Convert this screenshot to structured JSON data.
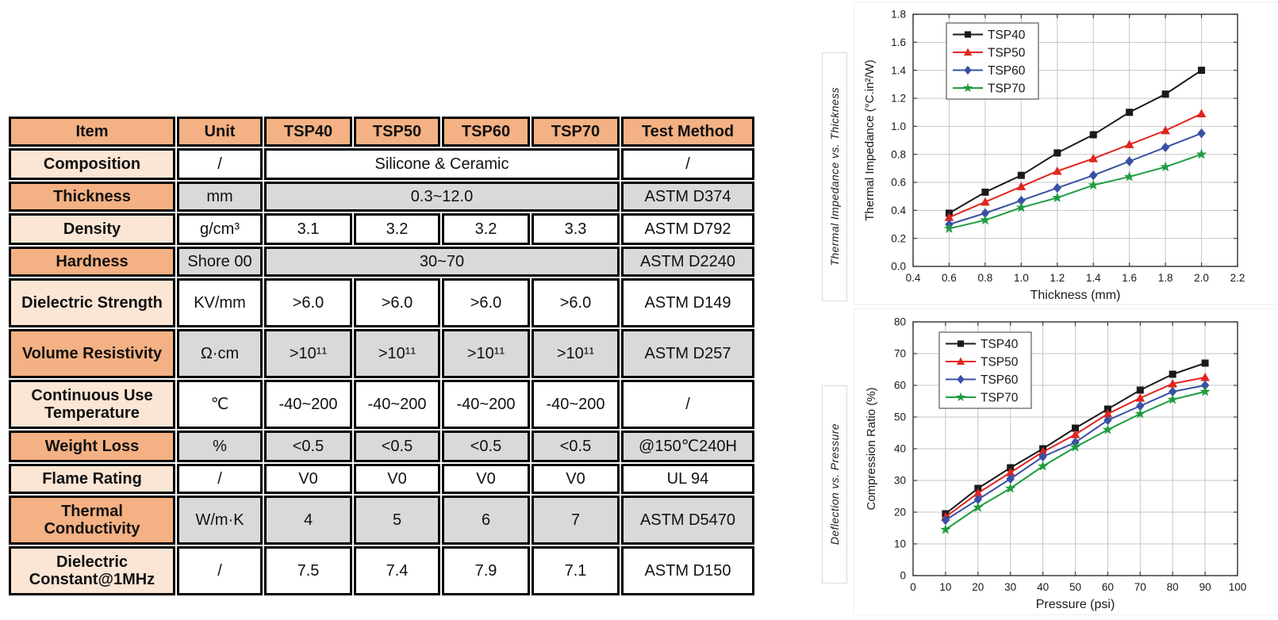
{
  "table": {
    "columns": [
      "Item",
      "Unit",
      "TSP40",
      "TSP50",
      "TSP60",
      "TSP70",
      "Test Method"
    ],
    "rows": [
      {
        "item": "Composition",
        "unit": "/",
        "values": [
          "Silicone & Ceramic"
        ],
        "span": 4,
        "test": "/"
      },
      {
        "item": "Thickness",
        "unit": "mm",
        "values": [
          "0.3~12.0"
        ],
        "span": 4,
        "test": "ASTM D374"
      },
      {
        "item": "Density",
        "unit": "g/cm³",
        "values": [
          "3.1",
          "3.2",
          "3.2",
          "3.3"
        ],
        "span": 1,
        "test": "ASTM D792"
      },
      {
        "item": "Hardness",
        "unit": "Shore 00",
        "values": [
          "30~70"
        ],
        "span": 4,
        "test": "ASTM D2240"
      },
      {
        "item": "Dielectric Strength",
        "unit": "KV/mm",
        "values": [
          ">6.0",
          ">6.0",
          ">6.0",
          ">6.0"
        ],
        "span": 1,
        "test": "ASTM D149"
      },
      {
        "item": "Volume Resistivity",
        "unit": "Ω·cm",
        "values": [
          ">10¹¹",
          ">10¹¹",
          ">10¹¹",
          ">10¹¹"
        ],
        "span": 1,
        "test": "ASTM D257"
      },
      {
        "item": "Continuous Use Temperature",
        "unit": "℃",
        "values": [
          "-40~200",
          "-40~200",
          "-40~200",
          "-40~200"
        ],
        "span": 1,
        "test": "/"
      },
      {
        "item": "Weight Loss",
        "unit": "%",
        "values": [
          "<0.5",
          "<0.5",
          "<0.5",
          "<0.5"
        ],
        "span": 1,
        "test": "@150℃240H"
      },
      {
        "item": "Flame Rating",
        "unit": "/",
        "values": [
          "V0",
          "V0",
          "V0",
          "V0"
        ],
        "span": 1,
        "test": "UL 94"
      },
      {
        "item": "Thermal Conductivity",
        "unit": "W/m·K",
        "values": [
          "4",
          "5",
          "6",
          "7"
        ],
        "span": 1,
        "test": "ASTM D5470"
      },
      {
        "item": "Dielectric Constant@1MHz",
        "unit": "/",
        "values": [
          "7.5",
          "7.4",
          "7.9",
          "7.1"
        ],
        "span": 1,
        "test": "ASTM D150"
      }
    ]
  },
  "colors": {
    "header_bg": "#F4B183",
    "row_label_light": "#FBE5D5",
    "row_label_dark": "#F4B183",
    "row_alt_gray": "#D9D9D9",
    "table_border": "#000000",
    "tsp40": "#1a1a1a",
    "tsp50": "#e0251f",
    "tsp60": "#3a50a4",
    "tsp70": "#1f9c40"
  },
  "chart_data": [
    {
      "type": "line",
      "side_label": "Thermal Impedance vs. Thickness",
      "xlabel": "Thickness (mm)",
      "ylabel": "Thermal Impedance (°C.in²/W)",
      "xlim": [
        0.4,
        2.2
      ],
      "ylim": [
        0.0,
        1.8
      ],
      "xticks": [
        0.4,
        0.6,
        0.8,
        1.0,
        1.2,
        1.4,
        1.6,
        1.8,
        2.0,
        2.2
      ],
      "yticks": [
        0.0,
        0.2,
        0.4,
        0.6,
        0.8,
        1.0,
        1.2,
        1.4,
        1.6,
        1.8
      ],
      "x_decimals": 1,
      "y_decimals": 1,
      "grid": true,
      "legend_position": "top-left",
      "x": [
        0.6,
        0.8,
        1.0,
        1.2,
        1.4,
        1.6,
        1.8,
        2.0
      ],
      "series": [
        {
          "name": "TSP40",
          "color": "#1a1a1a",
          "marker": "square",
          "values": [
            0.38,
            0.53,
            0.65,
            0.81,
            0.94,
            1.1,
            1.23,
            1.4
          ]
        },
        {
          "name": "TSP50",
          "color": "#e0251f",
          "marker": "triangle",
          "values": [
            0.35,
            0.46,
            0.57,
            0.68,
            0.77,
            0.87,
            0.97,
            1.09
          ]
        },
        {
          "name": "TSP60",
          "color": "#3a50a4",
          "marker": "diamond",
          "values": [
            0.3,
            0.38,
            0.47,
            0.56,
            0.65,
            0.75,
            0.85,
            0.95
          ]
        },
        {
          "name": "TSP70",
          "color": "#1f9c40",
          "marker": "star",
          "values": [
            0.27,
            0.33,
            0.42,
            0.49,
            0.58,
            0.64,
            0.71,
            0.8
          ]
        }
      ]
    },
    {
      "type": "line",
      "side_label": "Deflection vs. Pressure",
      "xlabel": "Pressure (psi)",
      "ylabel": "Compression Ratio (%)",
      "xlim": [
        0,
        100
      ],
      "ylim": [
        0,
        80
      ],
      "xticks": [
        0,
        10,
        20,
        30,
        40,
        50,
        60,
        70,
        80,
        90,
        100
      ],
      "yticks": [
        0,
        10,
        20,
        30,
        40,
        50,
        60,
        70,
        80
      ],
      "x_decimals": 0,
      "y_decimals": 0,
      "grid": true,
      "legend_position": "top-left",
      "x": [
        10,
        20,
        30,
        40,
        50,
        60,
        70,
        80,
        90
      ],
      "series": [
        {
          "name": "TSP40",
          "color": "#1a1a1a",
          "marker": "square",
          "values": [
            19.5,
            27.5,
            34,
            40,
            46.5,
            52.5,
            58.5,
            63.5,
            67
          ]
        },
        {
          "name": "TSP50",
          "color": "#e0251f",
          "marker": "triangle",
          "values": [
            18.5,
            26,
            32.5,
            39,
            44.5,
            51,
            56,
            60.5,
            62.5
          ]
        },
        {
          "name": "TSP60",
          "color": "#3a50a4",
          "marker": "diamond",
          "values": [
            17.5,
            24,
            30.5,
            37.5,
            42,
            49,
            53.5,
            58,
            60
          ]
        },
        {
          "name": "TSP70",
          "color": "#1f9c40",
          "marker": "star",
          "values": [
            14.5,
            21.5,
            27.5,
            34.5,
            40.5,
            46,
            51,
            55.5,
            58
          ]
        }
      ]
    }
  ]
}
